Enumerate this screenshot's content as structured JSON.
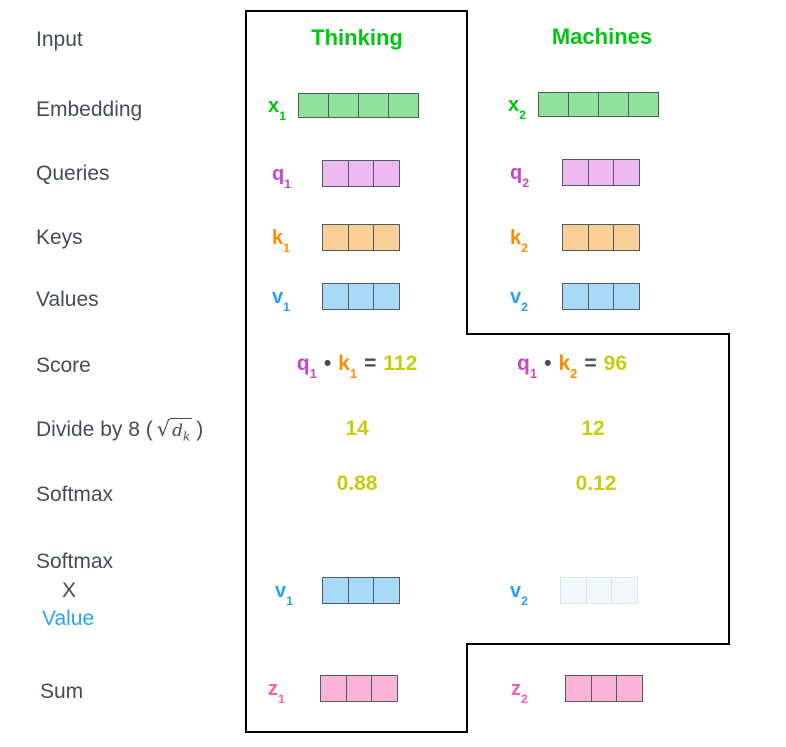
{
  "rail": {
    "input": "Input",
    "embedding": "Embedding",
    "queries": "Queries",
    "keys": "Keys",
    "values": "Values",
    "score": "Score",
    "divide_prefix": "Divide by 8 (",
    "divide_sqrt": "√",
    "divide_operand": "d",
    "divide_operand_sub": "k",
    "divide_suffix": ")",
    "softmax": "Softmax",
    "softmax_x_value": {
      "line1": "Softmax",
      "line2": "X",
      "line3": "Value"
    },
    "sum": "Sum"
  },
  "columns": [
    {
      "header": "Thinking",
      "embedding_label": {
        "base": "x",
        "sub": "1"
      },
      "embedding_cells": 4,
      "query_label": {
        "base": "q",
        "sub": "1"
      },
      "query_cells": 3,
      "key_label": {
        "base": "k",
        "sub": "1"
      },
      "key_cells": 3,
      "value_label": {
        "base": "v",
        "sub": "1"
      },
      "value_cells": 3,
      "score": {
        "q_base": "q",
        "q_sub": "1",
        "dot": "•",
        "k_base": "k",
        "k_sub": "1",
        "equals": "=",
        "result": "112"
      },
      "divided": "14",
      "softmax": "0.88",
      "weighted_value_label": {
        "base": "v",
        "sub": "1"
      },
      "weighted_value_cells": 3,
      "weighted_value_faded": false,
      "sum_label": {
        "base": "z",
        "sub": "1"
      },
      "sum_cells": 3
    },
    {
      "header": "Machines",
      "embedding_label": {
        "base": "x",
        "sub": "2"
      },
      "embedding_cells": 4,
      "query_label": {
        "base": "q",
        "sub": "2"
      },
      "query_cells": 3,
      "key_label": {
        "base": "k",
        "sub": "2"
      },
      "key_cells": 3,
      "value_label": {
        "base": "v",
        "sub": "2"
      },
      "value_cells": 3,
      "score": {
        "q_base": "q",
        "q_sub": "1",
        "dot": "•",
        "k_base": "k",
        "k_sub": "2",
        "equals": "=",
        "result": "96"
      },
      "divided": "12",
      "softmax": "0.12",
      "weighted_value_label": {
        "base": "v",
        "sub": "2"
      },
      "weighted_value_cells": 3,
      "weighted_value_faded": true,
      "sum_label": {
        "base": "z",
        "sub": "2"
      },
      "sum_cells": 3
    }
  ],
  "colors": {
    "header_green": "#00c613",
    "embedding_fill": "#90e29a",
    "query_label": "#cc44cc",
    "query_fill": "#ecb9f3",
    "key_label": "#ff8c00",
    "key_fill": "#fccf98",
    "value_label": "#2aa1f5",
    "value_fill": "#a8daf8",
    "sum_label": "#f65fb0",
    "sum_fill": "#fbb3d8",
    "score_yellow": "#c8cb11",
    "rail_text": "#414d5a",
    "cell_border": "#4e5a66",
    "outline": "#000000"
  }
}
